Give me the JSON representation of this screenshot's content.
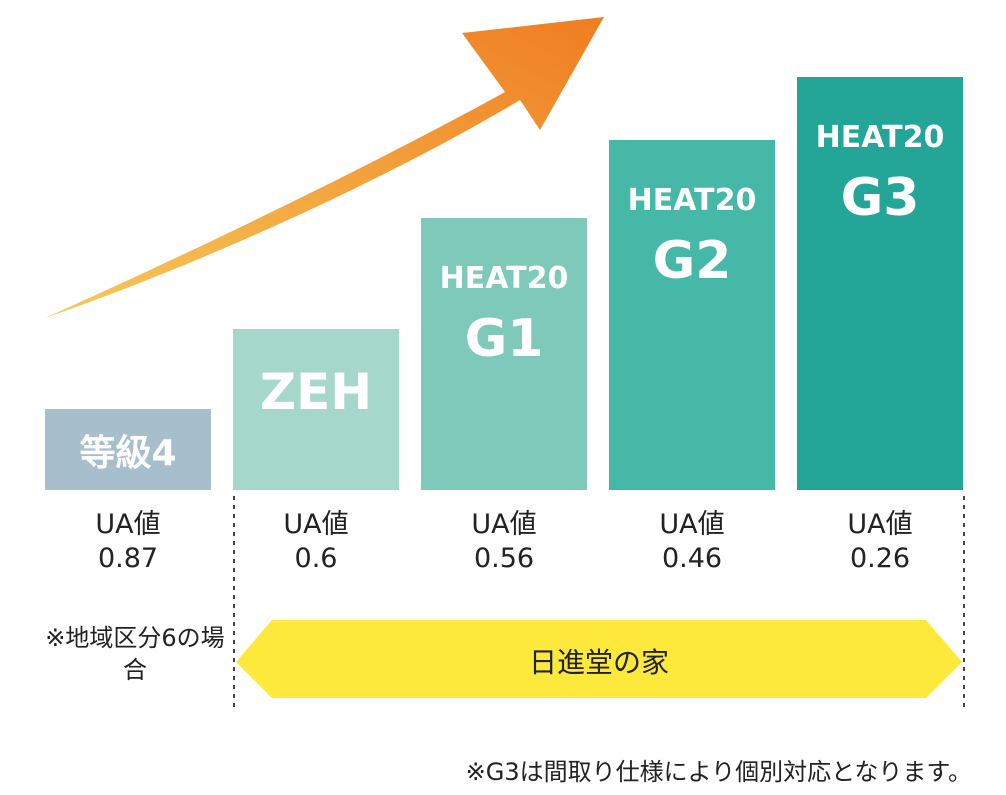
{
  "chart_data": {
    "type": "bar",
    "categories": [
      "等級4",
      "ZEH",
      "HEAT20 G1",
      "HEAT20 G2",
      "HEAT20 G3"
    ],
    "bars": [
      {
        "line1": "等級4",
        "line2": "",
        "ua_label": "UA値",
        "ua_value": "0.87",
        "color": "#a7bfcd"
      },
      {
        "line1": "ZEH",
        "line2": "",
        "ua_label": "UA値",
        "ua_value": "0.6",
        "color": "#a6d7cb"
      },
      {
        "line1": "HEAT20",
        "line2": "G1",
        "ua_label": "UA値",
        "ua_value": "0.56",
        "color": "#7fc9bb"
      },
      {
        "line1": "HEAT20",
        "line2": "G2",
        "ua_label": "UA値",
        "ua_value": "0.46",
        "color": "#45b8a7"
      },
      {
        "line1": "HEAT20",
        "line2": "G3",
        "ua_label": "UA値",
        "ua_value": "0.26",
        "color": "#23a698"
      }
    ],
    "values": [
      0.87,
      0.6,
      0.56,
      0.46,
      0.26
    ],
    "arrow_colors": [
      "#f7c95a",
      "#ef7d22"
    ]
  },
  "note_left": "※地域区分6の場合",
  "banner": {
    "label": "日進堂の家",
    "color": "#fde93c"
  },
  "footnote": "※G3は間取り仕様により個別対応となります。"
}
